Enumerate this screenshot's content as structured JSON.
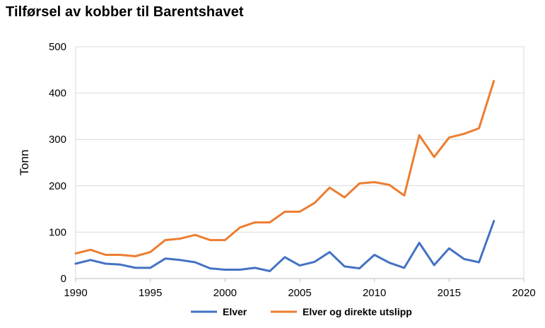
{
  "chart_data": {
    "type": "line",
    "title": "Tilførsel av kobber til Barentshavet",
    "xlabel": "",
    "ylabel": "Tonn",
    "xlim": [
      1990,
      2020
    ],
    "ylim": [
      0,
      500
    ],
    "x_ticks": [
      1990,
      1995,
      2000,
      2005,
      2010,
      2015,
      2020
    ],
    "y_ticks": [
      0,
      100,
      200,
      300,
      400,
      500
    ],
    "grid": "horizontal",
    "legend_position": "bottom",
    "x": [
      1990,
      1991,
      1992,
      1993,
      1994,
      1995,
      1996,
      1997,
      1998,
      1999,
      2000,
      2001,
      2002,
      2003,
      2004,
      2005,
      2006,
      2007,
      2008,
      2009,
      2010,
      2011,
      2012,
      2013,
      2014,
      2015,
      2016,
      2017,
      2018
    ],
    "series": [
      {
        "name": "Elver",
        "color": "#4472C4",
        "values": [
          32,
          40,
          32,
          30,
          23,
          23,
          43,
          40,
          35,
          22,
          19,
          19,
          23,
          16,
          46,
          28,
          36,
          57,
          26,
          22,
          51,
          34,
          23,
          77,
          29,
          65,
          42,
          35,
          124
        ]
      },
      {
        "name": "Elver og direkte utslipp",
        "color": "#ED7D31",
        "values": [
          54,
          62,
          51,
          51,
          48,
          57,
          83,
          86,
          94,
          83,
          83,
          110,
          121,
          121,
          144,
          144,
          163,
          196,
          175,
          205,
          208,
          202,
          179,
          309,
          262,
          304,
          312,
          324,
          426
        ]
      }
    ]
  }
}
